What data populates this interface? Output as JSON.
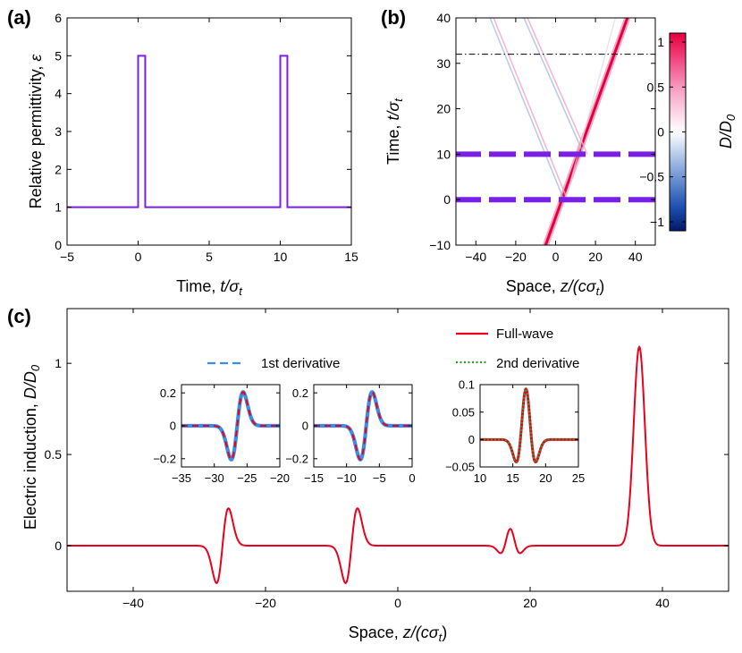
{
  "panels": {
    "a": "(a)",
    "b": "(b)",
    "c": "(c)"
  },
  "colors": {
    "purple": "#7a1fe6",
    "red": "#e8001c",
    "blue_dash": "#3a8ee6",
    "green_dot": "#2aa02a",
    "axis": "#000000"
  },
  "chart_data": [
    {
      "id": "a",
      "type": "line",
      "xlabel_prefix": "Time, ",
      "xlabel_var": "t/σ",
      "xlabel_sub": "t",
      "ylabel_prefix": "Relative permittivity, ",
      "ylabel_var": "ε",
      "xlim": [
        -5,
        15
      ],
      "ylim": [
        0,
        6
      ],
      "xticks": [
        -5,
        0,
        5,
        10,
        15
      ],
      "xtick_labels": [
        "−5",
        "0",
        "5",
        "10",
        "15"
      ],
      "yticks": [
        0,
        1,
        2,
        3,
        4,
        5,
        6
      ],
      "ytick_labels": [
        "0",
        "1",
        "2",
        "3",
        "4",
        "5",
        "6"
      ],
      "series": [
        {
          "name": "epsilon",
          "x": [
            -5,
            0,
            0,
            0.5,
            0.5,
            10,
            10,
            10.5,
            10.5,
            15
          ],
          "y": [
            1,
            1,
            5,
            5,
            1,
            1,
            5,
            5,
            1,
            1
          ]
        }
      ]
    },
    {
      "id": "b",
      "type": "heatmap",
      "xlabel_prefix": "Space,  ",
      "xlabel_var": "z/(cσ",
      "xlabel_sub": "t",
      "xlabel_suffix": ")",
      "ylabel_prefix": "Time, ",
      "ylabel_var": "t/σ",
      "ylabel_sub": "t",
      "xlim": [
        -50,
        50
      ],
      "ylim": [
        -10,
        40
      ],
      "xticks": [
        -40,
        -20,
        0,
        20,
        40
      ],
      "xtick_labels": [
        "−40",
        "−20",
        "0",
        "20",
        "40"
      ],
      "yticks": [
        -10,
        0,
        10,
        20,
        30,
        40
      ],
      "ytick_labels": [
        "−10",
        "0",
        "10",
        "20",
        "30",
        "40"
      ],
      "colorbar": {
        "label_var": "D/D",
        "label_sub": "0",
        "min": -1.1,
        "max": 1.1,
        "ticks": [
          -1,
          -0.5,
          0,
          0.5,
          1
        ],
        "tick_labels": [
          "−1",
          "−0.5",
          "0",
          "0.5",
          "1"
        ]
      },
      "dashed_lines_t": [
        0,
        10
      ],
      "dashdot_line_t": 32,
      "rays": [
        {
          "name": "main forward",
          "points": [
            [
              -5,
              -10
            ],
            [
              36,
              40
            ]
          ],
          "strength": 1.0
        },
        {
          "name": "reflected from t=0",
          "points": [
            [
              5,
              0
            ],
            [
              -32,
              40
            ]
          ],
          "strength": 0.25
        },
        {
          "name": "reflected from t=10",
          "points": [
            [
              15,
              10
            ],
            [
              -15,
              40
            ]
          ],
          "strength": 0.25
        },
        {
          "name": "twice modulated",
          "points": [
            [
              5,
              0
            ],
            [
              30,
              40
            ]
          ],
          "strength": 0.08
        }
      ]
    },
    {
      "id": "c",
      "type": "line",
      "xlabel_prefix": "Space,  ",
      "xlabel_var": "z/(cσ",
      "xlabel_sub": "t",
      "xlabel_suffix": ")",
      "ylabel_prefix": "Electric induction, ",
      "ylabel_var": "D/D",
      "ylabel_sub": "0",
      "xlim": [
        -50,
        50
      ],
      "ylim": [
        -0.25,
        1.3
      ],
      "xticks": [
        -40,
        -20,
        0,
        20,
        40
      ],
      "xtick_labels": [
        "−40",
        "−20",
        "0",
        "20",
        "40"
      ],
      "yticks": [
        0,
        0.5,
        1
      ],
      "ytick_labels": [
        "0",
        "0.5",
        "1"
      ],
      "legend": [
        {
          "label": "Full-wave",
          "style": "solid",
          "color": "#e8001c"
        },
        {
          "label": "1st derivative",
          "style": "dashed",
          "color": "#3a8ee6"
        },
        {
          "label": "2nd derivative",
          "style": "dotted",
          "color": "#2aa02a"
        }
      ],
      "pulses": [
        {
          "kind": "d1",
          "center": -26.5,
          "amplitude": 0.205,
          "sigma": 0.9
        },
        {
          "kind": "d1",
          "center": -7.0,
          "amplitude": 0.205,
          "sigma": 0.9
        },
        {
          "kind": "d2",
          "center": 17.0,
          "amplitude": 0.092,
          "sigma": 0.85
        },
        {
          "kind": "gauss",
          "center": 36.5,
          "amplitude": 1.09,
          "sigma": 0.85
        }
      ],
      "insets": [
        {
          "id": "inset1",
          "xlim": [
            -35,
            -20
          ],
          "ylim": [
            -0.25,
            0.25
          ],
          "xticks": [
            -35,
            -30,
            -25,
            -20
          ],
          "xtick_labels": [
            "−35",
            "−30",
            "−25",
            "−20"
          ],
          "yticks": [
            -0.2,
            0,
            0.2
          ],
          "ytick_labels": [
            "−0.2",
            "0",
            "0.2"
          ],
          "pulse": {
            "kind": "d1",
            "center": -26.5,
            "amplitude": 0.205,
            "sigma": 0.9
          },
          "overlay": "dashed"
        },
        {
          "id": "inset2",
          "xlim": [
            -15,
            0
          ],
          "ylim": [
            -0.25,
            0.25
          ],
          "xticks": [
            -15,
            -10,
            -5,
            0
          ],
          "xtick_labels": [
            "−15",
            "−10",
            "−5",
            "0"
          ],
          "yticks": [
            -0.2,
            0,
            0.2
          ],
          "ytick_labels": [
            "−0.2",
            "0",
            "0.2"
          ],
          "pulse": {
            "kind": "d1",
            "center": -7.0,
            "amplitude": 0.205,
            "sigma": 0.9
          },
          "overlay": "dashed"
        },
        {
          "id": "inset3",
          "xlim": [
            10,
            25
          ],
          "ylim": [
            -0.05,
            0.1
          ],
          "xticks": [
            10,
            15,
            20,
            25
          ],
          "xtick_labels": [
            "10",
            "15",
            "20",
            "25"
          ],
          "yticks": [
            -0.05,
            0,
            0.05,
            0.1
          ],
          "ytick_labels": [
            "−0.05",
            "0",
            "0.05",
            "0.1"
          ],
          "pulse": {
            "kind": "d2",
            "center": 17.0,
            "amplitude": 0.092,
            "sigma": 0.85
          },
          "overlay": "dotted"
        }
      ]
    }
  ]
}
